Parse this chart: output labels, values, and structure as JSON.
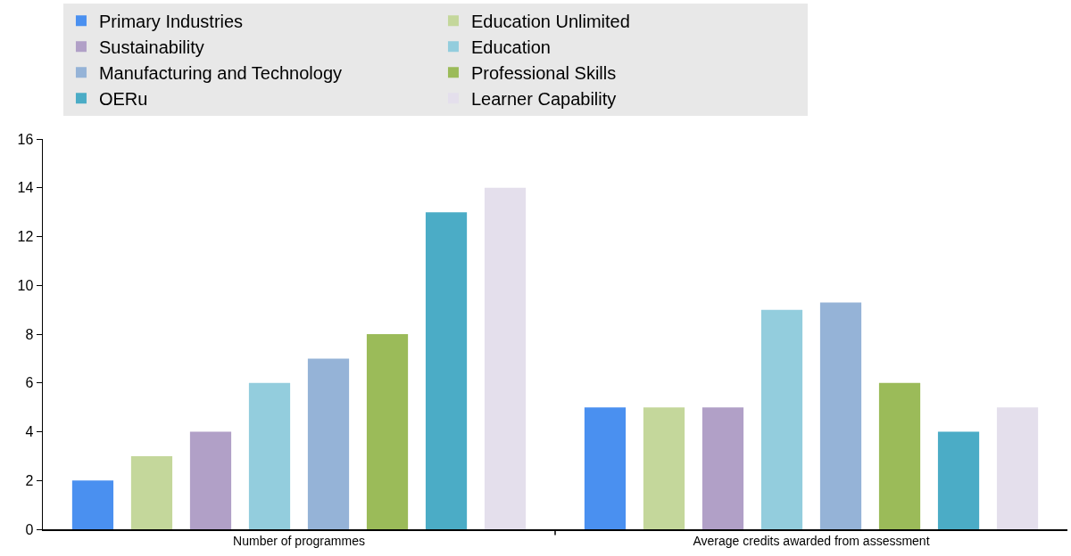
{
  "chart_data": {
    "type": "bar",
    "categories": [
      "Number of programmes",
      "Average credits awarded from assessment"
    ],
    "series": [
      {
        "name": "Primary Industries",
        "color": "#4a90f0",
        "values": [
          2,
          5
        ]
      },
      {
        "name": "Education Unlimited",
        "color": "#c4d79b",
        "values": [
          3,
          5
        ]
      },
      {
        "name": "Sustainability",
        "color": "#b1a0c7",
        "values": [
          4,
          5
        ]
      },
      {
        "name": "Education",
        "color": "#93cddd",
        "values": [
          6,
          9
        ]
      },
      {
        "name": "Manufacturing and Technology",
        "color": "#95b3d7",
        "values": [
          7,
          9.3
        ]
      },
      {
        "name": "Professional Skills",
        "color": "#9bbb59",
        "values": [
          8,
          6
        ]
      },
      {
        "name": "OERu",
        "color": "#4bacc6",
        "values": [
          13,
          4
        ]
      },
      {
        "name": "Learner Capability",
        "color": "#e4dfec",
        "values": [
          14,
          5
        ]
      }
    ],
    "ylim": [
      0,
      16
    ],
    "yticks": [
      0,
      2,
      4,
      6,
      8,
      10,
      12,
      14,
      16
    ],
    "grid": false,
    "legend": "top"
  }
}
